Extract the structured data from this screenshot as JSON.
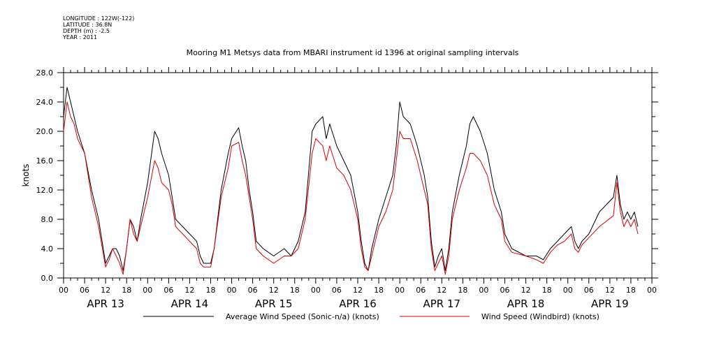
{
  "header": {
    "longitude": "LONGITUDE : 122W(-122)",
    "latitude": "LATITUDE : 36.8N",
    "depth": "DEPTH (m) : -2.5",
    "year": "YEAR : 2011"
  },
  "chart_data": {
    "type": "line",
    "title": "Mooring M1 Metsys data from MBARI instrument id 1396 at original sampling intervals",
    "ylabel": "knots",
    "ylim": [
      0,
      28
    ],
    "y_ticks": [
      "0.0",
      "4.0",
      "8.0",
      "12.0",
      "16.0",
      "20.0",
      "24.0",
      "28.0"
    ],
    "x_range_hours": [
      0,
      168
    ],
    "x_tick_labels": [
      "00",
      "06",
      "12",
      "18",
      "00",
      "06",
      "12",
      "18",
      "00",
      "06",
      "12",
      "18",
      "00",
      "06",
      "12",
      "18",
      "00",
      "06",
      "12",
      "18",
      "00",
      "06",
      "12",
      "18",
      "00",
      "06",
      "12",
      "18",
      "00"
    ],
    "day_labels": [
      "APR 13",
      "APR 14",
      "APR 15",
      "APR 16",
      "APR 17",
      "APR 18",
      "APR 19"
    ],
    "series": [
      {
        "name": "Average Wind Speed (Sonic-n/a) (knots)",
        "color": "#000000",
        "points": [
          [
            0,
            22
          ],
          [
            1,
            26
          ],
          [
            2,
            24
          ],
          [
            3,
            22
          ],
          [
            4,
            20
          ],
          [
            6,
            17
          ],
          [
            8,
            12
          ],
          [
            10,
            8
          ],
          [
            12,
            2
          ],
          [
            13,
            3
          ],
          [
            14,
            4
          ],
          [
            15,
            4
          ],
          [
            16,
            3
          ],
          [
            17,
            1
          ],
          [
            18,
            4
          ],
          [
            19,
            8
          ],
          [
            20,
            7
          ],
          [
            21,
            5
          ],
          [
            22,
            8
          ],
          [
            24,
            13
          ],
          [
            26,
            20
          ],
          [
            27,
            19
          ],
          [
            28,
            17
          ],
          [
            30,
            14
          ],
          [
            31,
            11
          ],
          [
            32,
            8
          ],
          [
            34,
            7
          ],
          [
            36,
            6
          ],
          [
            38,
            5
          ],
          [
            39,
            3
          ],
          [
            40,
            2
          ],
          [
            42,
            2
          ],
          [
            43,
            4
          ],
          [
            45,
            12
          ],
          [
            47,
            17
          ],
          [
            48,
            19
          ],
          [
            50,
            20.5
          ],
          [
            51,
            18
          ],
          [
            52,
            16
          ],
          [
            53,
            12
          ],
          [
            54,
            9
          ],
          [
            55,
            5
          ],
          [
            57,
            4
          ],
          [
            60,
            3
          ],
          [
            63,
            4
          ],
          [
            65,
            3
          ],
          [
            67,
            5
          ],
          [
            69,
            9
          ],
          [
            71,
            20
          ],
          [
            72,
            21
          ],
          [
            74,
            22
          ],
          [
            75,
            19
          ],
          [
            76,
            21
          ],
          [
            78,
            18
          ],
          [
            80,
            16
          ],
          [
            82,
            14
          ],
          [
            84,
            9
          ],
          [
            85,
            5
          ],
          [
            86,
            2
          ],
          [
            87,
            1
          ],
          [
            88,
            4
          ],
          [
            90,
            8
          ],
          [
            92,
            11
          ],
          [
            94,
            14
          ],
          [
            95,
            18
          ],
          [
            96,
            24
          ],
          [
            97,
            22
          ],
          [
            99,
            21
          ],
          [
            101,
            18
          ],
          [
            103,
            14
          ],
          [
            104,
            11
          ],
          [
            105,
            5
          ],
          [
            106,
            1.5
          ],
          [
            107,
            3
          ],
          [
            108,
            4
          ],
          [
            109,
            1
          ],
          [
            110,
            4
          ],
          [
            111,
            9
          ],
          [
            113,
            14
          ],
          [
            115,
            18
          ],
          [
            116,
            21
          ],
          [
            117,
            22
          ],
          [
            119,
            20
          ],
          [
            121,
            17
          ],
          [
            123,
            12
          ],
          [
            125,
            9
          ],
          [
            126,
            6
          ],
          [
            128,
            4
          ],
          [
            132,
            3
          ],
          [
            135,
            3
          ],
          [
            137,
            2.5
          ],
          [
            139,
            4
          ],
          [
            141,
            5
          ],
          [
            143,
            6
          ],
          [
            145,
            7
          ],
          [
            146,
            5
          ],
          [
            147,
            4
          ],
          [
            148,
            5
          ],
          [
            150,
            6
          ],
          [
            153,
            9
          ],
          [
            157,
            11
          ],
          [
            158,
            14
          ],
          [
            159,
            10
          ],
          [
            160,
            8
          ],
          [
            161,
            9
          ],
          [
            162,
            8
          ],
          [
            163,
            9
          ],
          [
            164,
            7
          ]
        ]
      },
      {
        "name": "Wind Speed (Windbird) (knots)",
        "color": "#dd0000",
        "points": [
          [
            0,
            20
          ],
          [
            1,
            24
          ],
          [
            2,
            22
          ],
          [
            3,
            21
          ],
          [
            4,
            19
          ],
          [
            6,
            17
          ],
          [
            8,
            11
          ],
          [
            10,
            7
          ],
          [
            12,
            1.5
          ],
          [
            13,
            2.5
          ],
          [
            14,
            4
          ],
          [
            15,
            3
          ],
          [
            16,
            2
          ],
          [
            17,
            0.5
          ],
          [
            18,
            4
          ],
          [
            19,
            8
          ],
          [
            20,
            6
          ],
          [
            21,
            5
          ],
          [
            22,
            7
          ],
          [
            24,
            11
          ],
          [
            26,
            16
          ],
          [
            27,
            15
          ],
          [
            28,
            13
          ],
          [
            30,
            12
          ],
          [
            31,
            10
          ],
          [
            32,
            7
          ],
          [
            34,
            6
          ],
          [
            36,
            5
          ],
          [
            38,
            4
          ],
          [
            39,
            2
          ],
          [
            40,
            1.5
          ],
          [
            42,
            1.5
          ],
          [
            43,
            4
          ],
          [
            45,
            11
          ],
          [
            47,
            15
          ],
          [
            48,
            18
          ],
          [
            50,
            18.5
          ],
          [
            51,
            16
          ],
          [
            52,
            14
          ],
          [
            53,
            11
          ],
          [
            54,
            8
          ],
          [
            55,
            4
          ],
          [
            57,
            3
          ],
          [
            60,
            2
          ],
          [
            63,
            3
          ],
          [
            65,
            3
          ],
          [
            67,
            4
          ],
          [
            69,
            8
          ],
          [
            71,
            17
          ],
          [
            72,
            19
          ],
          [
            74,
            18
          ],
          [
            75,
            16
          ],
          [
            76,
            18
          ],
          [
            78,
            15
          ],
          [
            80,
            14
          ],
          [
            82,
            12
          ],
          [
            84,
            8
          ],
          [
            85,
            4
          ],
          [
            86,
            1.5
          ],
          [
            87,
            1
          ],
          [
            88,
            3
          ],
          [
            90,
            7
          ],
          [
            92,
            9
          ],
          [
            94,
            12
          ],
          [
            95,
            16
          ],
          [
            96,
            20
          ],
          [
            97,
            19
          ],
          [
            99,
            19
          ],
          [
            101,
            16
          ],
          [
            103,
            12
          ],
          [
            104,
            10
          ],
          [
            105,
            4
          ],
          [
            106,
            1
          ],
          [
            107,
            2
          ],
          [
            108,
            3
          ],
          [
            109,
            0.5
          ],
          [
            110,
            3
          ],
          [
            111,
            8
          ],
          [
            113,
            12
          ],
          [
            115,
            15
          ],
          [
            116,
            17
          ],
          [
            117,
            17
          ],
          [
            119,
            16
          ],
          [
            121,
            14
          ],
          [
            123,
            10
          ],
          [
            125,
            8
          ],
          [
            126,
            5
          ],
          [
            128,
            3.5
          ],
          [
            132,
            3
          ],
          [
            135,
            2.5
          ],
          [
            137,
            2
          ],
          [
            139,
            3.5
          ],
          [
            141,
            4.5
          ],
          [
            143,
            5
          ],
          [
            145,
            6
          ],
          [
            146,
            4
          ],
          [
            147,
            3.5
          ],
          [
            148,
            4.5
          ],
          [
            150,
            5.5
          ],
          [
            153,
            7
          ],
          [
            157,
            8.5
          ],
          [
            158,
            13
          ],
          [
            159,
            9
          ],
          [
            160,
            7
          ],
          [
            161,
            8
          ],
          [
            162,
            7
          ],
          [
            163,
            8
          ],
          [
            164,
            6
          ]
        ]
      }
    ],
    "grid": false,
    "legend_position": "bottom"
  }
}
